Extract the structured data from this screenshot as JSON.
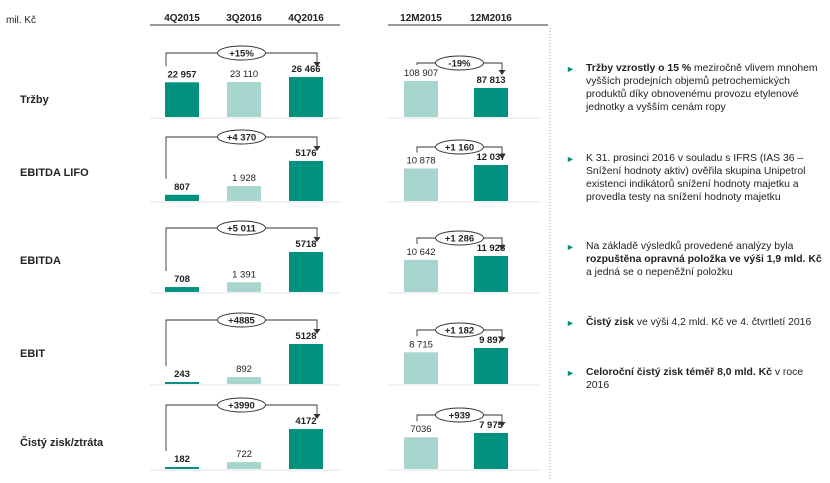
{
  "unit_label": "mil. Kč",
  "colors": {
    "teal": "#00917f",
    "light": "#a9d5cf",
    "text": "#222222",
    "line": "#333333"
  },
  "chart_data": {
    "type": "bar",
    "groups": [
      {
        "name": "quarterly",
        "categories": [
          "4Q2015",
          "3Q2016",
          "4Q2016"
        ],
        "bar_styles": [
          "teal",
          "light",
          "teal"
        ]
      },
      {
        "name": "annual",
        "categories": [
          "12M2015",
          "12M2016"
        ],
        "bar_styles": [
          "light",
          "teal"
        ]
      }
    ],
    "rows": [
      {
        "label": "Tržby",
        "quarterly": {
          "values": [
            22957,
            23110,
            26466
          ],
          "labels": [
            "22 957",
            "23 110",
            "26 466"
          ],
          "change": "+15%"
        },
        "annual": {
          "values": [
            108907,
            87813
          ],
          "labels": [
            "108 907",
            "87 813"
          ],
          "change": "-19%"
        }
      },
      {
        "label": "EBITDA LIFO",
        "quarterly": {
          "values": [
            807,
            1928,
            5176
          ],
          "labels": [
            "807",
            "1 928",
            "5176"
          ],
          "change": "+4 370"
        },
        "annual": {
          "values": [
            10878,
            12037
          ],
          "labels": [
            "10 878",
            "12 037"
          ],
          "change": "+1 160"
        }
      },
      {
        "label": "EBITDA",
        "quarterly": {
          "values": [
            708,
            1391,
            5718
          ],
          "labels": [
            "708",
            "1 391",
            "5718"
          ],
          "change": "+5 011"
        },
        "annual": {
          "values": [
            10642,
            11928
          ],
          "labels": [
            "10 642",
            "11 928"
          ],
          "change": "+1 286"
        }
      },
      {
        "label": "EBIT",
        "quarterly": {
          "values": [
            243,
            892,
            5128
          ],
          "labels": [
            "243",
            "892",
            "5128"
          ],
          "change": "+4885"
        },
        "annual": {
          "values": [
            8715,
            9897
          ],
          "labels": [
            "8 715",
            "9 897"
          ],
          "change": "+1 182"
        }
      },
      {
        "label": "Čistý zisk/ztráta",
        "quarterly": {
          "values": [
            182,
            722,
            4172
          ],
          "labels": [
            "182",
            "722",
            "4172"
          ],
          "change": "+3990"
        },
        "annual": {
          "values": [
            7036,
            7975
          ],
          "labels": [
            "7036",
            "7 975"
          ],
          "change": "+939"
        }
      }
    ]
  },
  "bullets": [
    {
      "marker": "►",
      "parts": [
        {
          "text": "Tržby vzrostly o 15 %",
          "bold": true
        },
        {
          "text": " meziročně vlivem mnohem vyšších prodejních objemů petrochemických produktů díky obnovenému provozu etylenové jednotky a vyšším cenám ropy",
          "bold": false
        }
      ]
    },
    {
      "marker": "►",
      "parts": [
        {
          "text": "K 31. prosinci 2016 v souladu s IFRS (IAS 36 – Snížení hodnoty aktiv) ověřila skupina Unipetrol existenci indikátorů snížení hodnoty majetku a provedla testy na snížení hodnoty majetku",
          "bold": false
        }
      ]
    },
    {
      "marker": "►",
      "parts": [
        {
          "text": "Na základě výsledků provedené analýzy byla ",
          "bold": false
        },
        {
          "text": "rozpuštěna opravná položka ve výši 1,9 mld. Kč",
          "bold": true
        },
        {
          "text": " a jedná se o nepeněžní položku",
          "bold": false
        }
      ]
    },
    {
      "marker": "►",
      "parts": [
        {
          "text": "Čistý zisk",
          "bold": true
        },
        {
          "text": " ve výši 4,2 mld. Kč ve 4. čtvrtletí 2016",
          "bold": false
        }
      ]
    },
    {
      "marker": "►",
      "parts": [
        {
          "text": "Celoroční čistý zisk téměř 8,0 mld. Kč",
          "bold": true
        },
        {
          "text": " v roce 2016",
          "bold": false
        }
      ]
    }
  ]
}
